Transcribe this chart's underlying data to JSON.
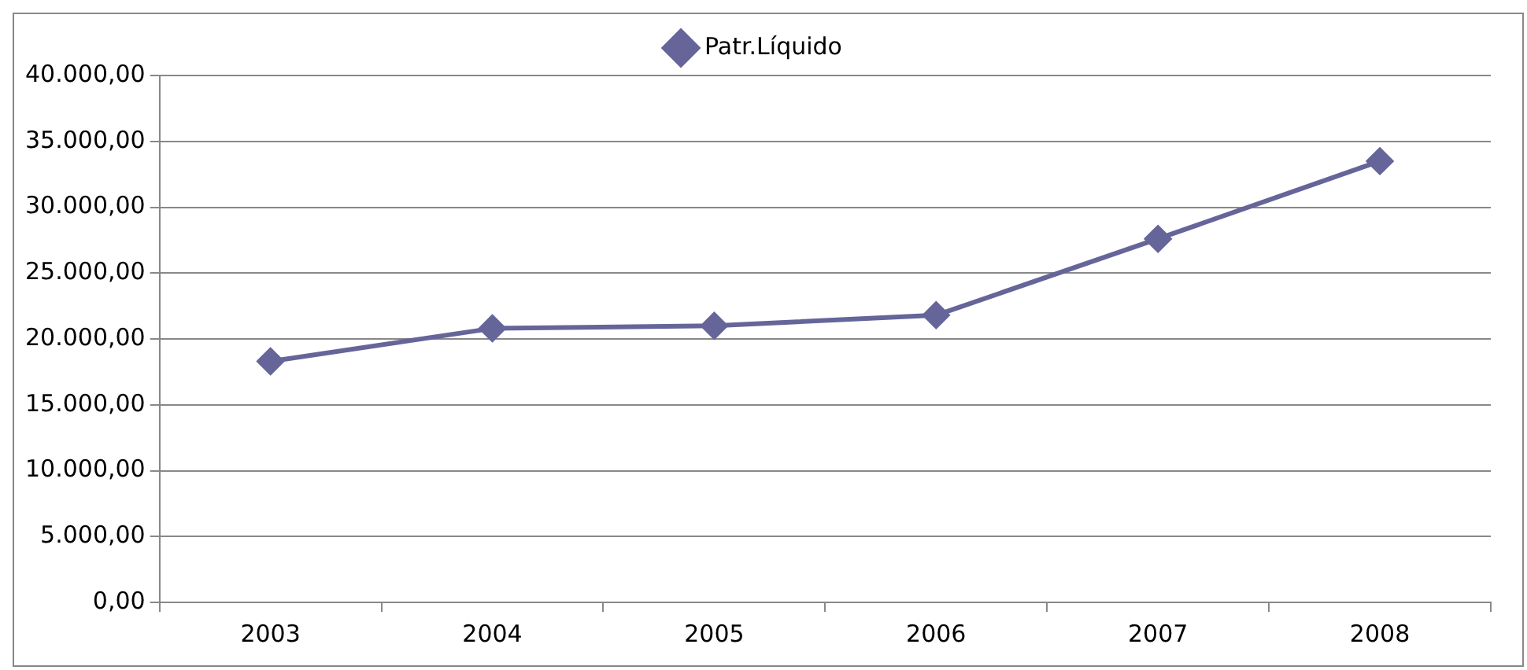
{
  "chart_data": {
    "type": "line",
    "categories": [
      "2003",
      "2004",
      "2005",
      "2006",
      "2007",
      "2008"
    ],
    "series": [
      {
        "name": "Patr.Líquido",
        "color": "#65659a",
        "values": [
          18300,
          20800,
          21000,
          21800,
          27600,
          33500
        ]
      }
    ],
    "ylim": [
      0,
      40000
    ],
    "yticks": [
      {
        "value": 0,
        "label": "0,00"
      },
      {
        "value": 5000,
        "label": "5.000,00"
      },
      {
        "value": 10000,
        "label": "10.000,00"
      },
      {
        "value": 15000,
        "label": "15.000,00"
      },
      {
        "value": 20000,
        "label": "20.000,00"
      },
      {
        "value": 25000,
        "label": "25.000,00"
      },
      {
        "value": 30000,
        "label": "30.000,00"
      },
      {
        "value": 35000,
        "label": "35.000,00"
      },
      {
        "value": 40000,
        "label": "40.000,00"
      }
    ],
    "grid": "y",
    "legend": "top",
    "marker": "diamond",
    "line_style": "solid"
  }
}
